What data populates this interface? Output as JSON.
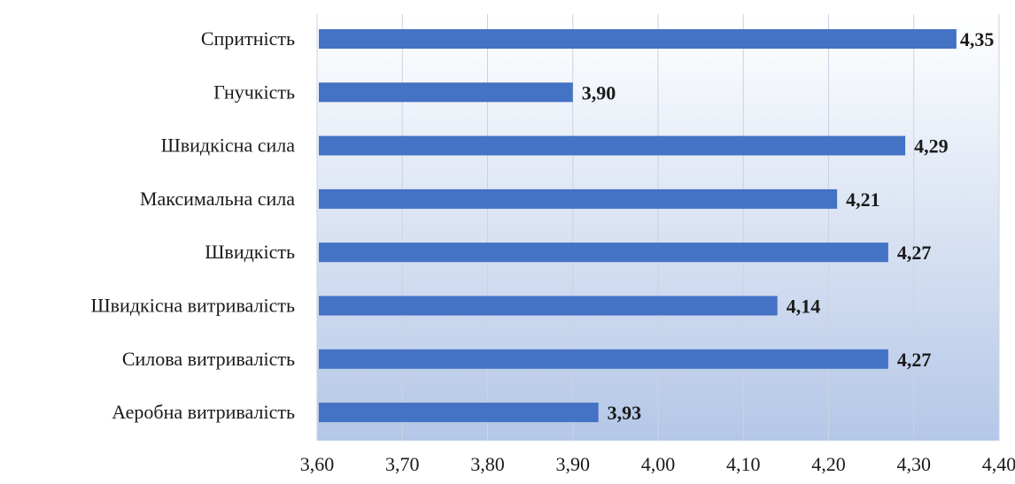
{
  "chart_data": {
    "type": "bar",
    "orientation": "horizontal",
    "categories": [
      "Спритність",
      "Гнучкість",
      "Швидкісна сила",
      "Максимальна сила",
      "Швидкість",
      "Швидкісна витривалість",
      "Силова витривалість",
      "Аеробна витривалість"
    ],
    "values": [
      4.35,
      3.9,
      4.29,
      4.21,
      4.27,
      4.14,
      4.27,
      3.93
    ],
    "data_labels": [
      "4,35",
      "3,90",
      "4,29",
      "4,21",
      "4,27",
      "4,14",
      "4,27",
      "3,93"
    ],
    "xlim": [
      3.6,
      4.4
    ],
    "xticks": [
      3.6,
      3.7,
      3.8,
      3.9,
      4.0,
      4.1,
      4.2,
      4.3,
      4.4
    ],
    "xtick_labels": [
      "3,60",
      "3,70",
      "3,80",
      "3,90",
      "4,00",
      "4,10",
      "4,20",
      "4,30",
      "4,40"
    ],
    "title": "",
    "xlabel": "",
    "ylabel": "",
    "grid": "vertical",
    "legend": "none",
    "colors": {
      "bar": "#4472c4",
      "plot_bg_top": "#ffffff",
      "plot_bg_bottom": "#b4c7e7",
      "grid": "#c9d3e2"
    }
  }
}
